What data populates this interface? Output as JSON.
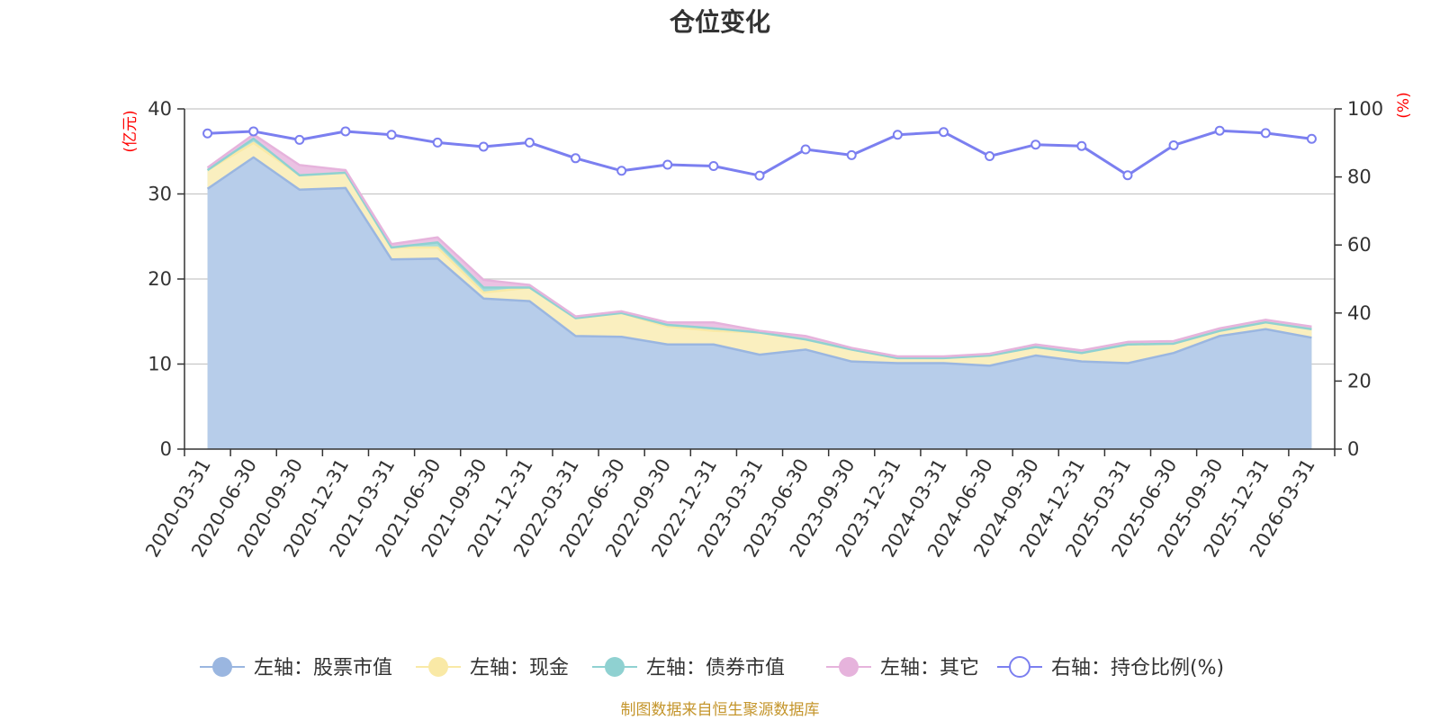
{
  "chart_data": {
    "type": "area",
    "title": "仓位变化",
    "left_axis_unit": "(亿元)",
    "right_axis_unit": "(%)",
    "categories": [
      "2020-03-31",
      "2020-06-30",
      "2020-09-30",
      "2020-12-31",
      "2021-03-31",
      "2021-06-30",
      "2021-09-30",
      "2021-12-31",
      "2022-03-31",
      "2022-06-30",
      "2022-09-30",
      "2022-12-31",
      "2023-03-31",
      "2023-06-30",
      "2023-09-30",
      "2023-12-31",
      "2024-03-31",
      "2024-06-30",
      "2024-09-30",
      "2024-12-31",
      "2025-03-31",
      "2025-06-30",
      "2025-09-30",
      "2025-12-31",
      "2026-03-31"
    ],
    "ylim_left": [
      0,
      40
    ],
    "yticks_left": [
      0,
      10,
      20,
      30,
      40
    ],
    "ylim_right": [
      0,
      100
    ],
    "yticks_right": [
      0,
      20,
      40,
      60,
      80,
      100
    ],
    "grid": true,
    "legend_position": "bottom",
    "series": [
      {
        "name": "左轴：股票市值",
        "axis": "left",
        "kind": "stacked-area",
        "color": "#9ab6e0",
        "fill": "#b7cdea",
        "values": [
          30.6,
          34.3,
          30.5,
          30.7,
          22.3,
          22.4,
          17.7,
          17.4,
          13.3,
          13.2,
          12.3,
          12.3,
          11.1,
          11.7,
          10.3,
          10.1,
          10.1,
          9.8,
          11.0,
          10.3,
          10.1,
          11.3,
          13.3,
          14.1,
          13.1
        ]
      },
      {
        "name": "左轴：现金",
        "axis": "left",
        "kind": "stacked-area",
        "color": "#f9e9a6",
        "fill": "#faefbf",
        "values": [
          2.2,
          1.7,
          1.7,
          1.8,
          1.4,
          1.3,
          0.7,
          1.6,
          2.1,
          2.8,
          2.1,
          1.6,
          2.6,
          1.2,
          1.4,
          0.6,
          0.6,
          1.2,
          1.0,
          1.0,
          2.2,
          1.1,
          0.6,
          0.8,
          1.0
        ]
      },
      {
        "name": "左轴：债券市值",
        "axis": "left",
        "kind": "stacked-area",
        "color": "#8fd1d1",
        "fill": "#a8dcdc",
        "values": [
          0.0,
          0.5,
          0.0,
          0.0,
          0.0,
          0.6,
          0.6,
          0.0,
          0.0,
          0.0,
          0.2,
          0.3,
          0.0,
          0.0,
          0.0,
          0.0,
          0.0,
          0.0,
          0.0,
          0.0,
          0.0,
          0.0,
          0.0,
          0.0,
          0.0
        ]
      },
      {
        "name": "左轴：其它",
        "axis": "left",
        "kind": "stacked-area",
        "color": "#e6b3dc",
        "fill": "#ebc2e3",
        "values": [
          0.3,
          0.5,
          1.2,
          0.3,
          0.4,
          0.6,
          0.9,
          0.3,
          0.2,
          0.2,
          0.3,
          0.7,
          0.2,
          0.4,
          0.2,
          0.2,
          0.2,
          0.2,
          0.3,
          0.3,
          0.3,
          0.3,
          0.3,
          0.3,
          0.3
        ]
      },
      {
        "name": "右轴：持仓比例(%)",
        "axis": "right",
        "kind": "line",
        "color": "#7b7ff0",
        "values": [
          92.8,
          93.4,
          90.9,
          93.4,
          92.4,
          90.1,
          88.9,
          90.1,
          85.5,
          81.8,
          83.6,
          83.2,
          80.4,
          88.1,
          86.4,
          92.4,
          93.2,
          86.1,
          89.5,
          89.1,
          80.5,
          89.3,
          93.6,
          92.9,
          91.2
        ]
      }
    ]
  },
  "source_text": "制图数据来自恒生聚源数据库"
}
